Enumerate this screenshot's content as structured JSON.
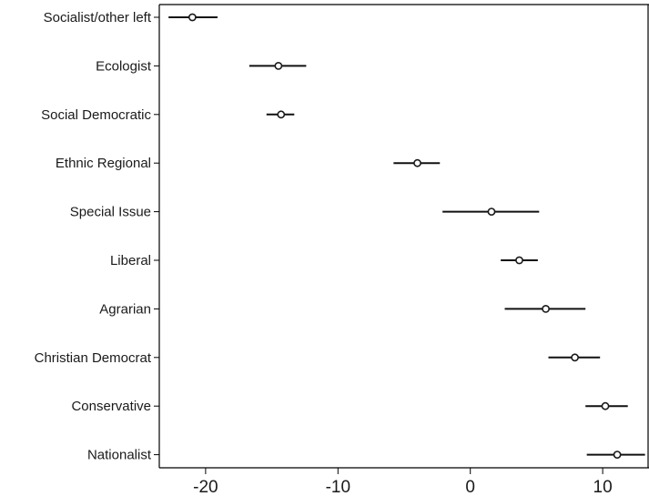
{
  "chart_data": {
    "type": "scatter",
    "title": "",
    "xlabel": "",
    "ylabel": "",
    "xlim": [
      -23.5,
      13.5
    ],
    "x_ticks": [
      -20,
      -10,
      0,
      10
    ],
    "x_tick_labels": [
      "-20",
      "-10",
      "0",
      "10"
    ],
    "grid": false,
    "legend": "none",
    "categories": [
      "Socialist/other left",
      "Ecologist",
      "Social Democratic",
      "Ethnic Regional",
      "Special Issue",
      "Liberal",
      "Agrarian",
      "Christian Democrat",
      "Conservative",
      "Nationalist"
    ],
    "series": [
      {
        "estimates": [
          -21.0,
          -14.5,
          -14.3,
          -4.0,
          1.6,
          3.7,
          5.7,
          7.9,
          10.2,
          11.1
        ],
        "ci_low": [
          -22.8,
          -16.7,
          -15.4,
          -5.8,
          -2.1,
          2.3,
          2.6,
          5.9,
          8.7,
          8.8
        ],
        "ci_high": [
          -19.1,
          -12.4,
          -13.3,
          -2.3,
          5.2,
          5.1,
          8.7,
          9.8,
          11.9,
          13.2
        ]
      }
    ]
  },
  "colors": {
    "axis": "#000000",
    "marker": "#1a1a1a",
    "ci_line": "#111111",
    "background": "#ffffff"
  }
}
